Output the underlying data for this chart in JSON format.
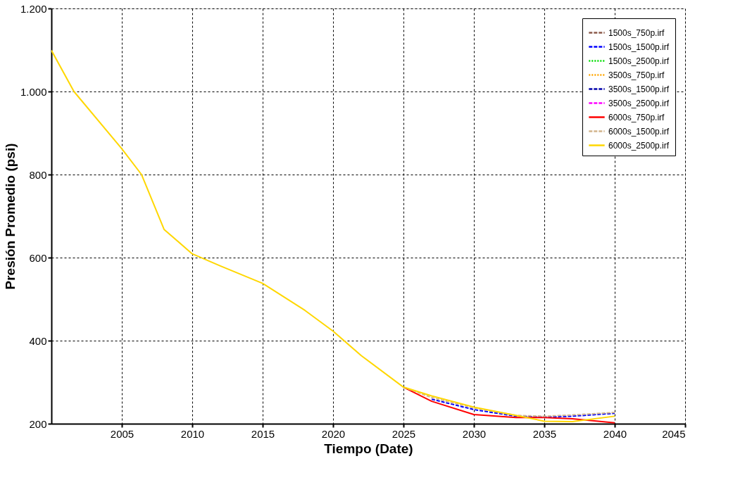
{
  "chart_data": {
    "type": "line",
    "xlabel": "Tiempo (Date)",
    "ylabel": "Presión Promedio (psi)",
    "x": [
      2000,
      2001.6,
      2005,
      2006.4,
      2008,
      2010,
      2012,
      2015,
      2018,
      2020,
      2022,
      2025,
      2027,
      2030,
      2033,
      2035,
      2037,
      2040
    ],
    "xlim": [
      2000,
      2045
    ],
    "xticks": [
      2005,
      2010,
      2015,
      2020,
      2025,
      2030,
      2035,
      2040,
      2045
    ],
    "ylim": [
      200,
      1200
    ],
    "yticks": [
      200,
      400,
      600,
      800,
      {
        "value": 1000,
        "label": "1.000"
      },
      {
        "value": 1200,
        "label": "1.200"
      }
    ],
    "grid": true,
    "legend": "top right",
    "marker": "none",
    "series": [
      {
        "name": "1500s_750p.irf",
        "color": "#8b5a4a",
        "line_style": "dashed",
        "values": [
          null,
          null,
          null,
          null,
          null,
          null,
          null,
          null,
          null,
          null,
          null,
          null,
          null,
          null,
          null,
          null,
          null,
          null
        ]
      },
      {
        "name": "1500s_1500p.irf",
        "color": "#0000ff",
        "line_style": "dashed",
        "values": [
          null,
          null,
          null,
          null,
          null,
          null,
          null,
          null,
          null,
          null,
          null,
          null,
          259,
          234,
          218,
          216,
          218,
          225
        ]
      },
      {
        "name": "1500s_2500p.irf",
        "color": "#00dd00",
        "line_style": "dotted",
        "values": [
          null,
          null,
          null,
          null,
          null,
          null,
          null,
          null,
          null,
          null,
          null,
          null,
          null,
          null,
          null,
          null,
          null,
          null
        ]
      },
      {
        "name": "3500s_750p.irf",
        "color": "#ffa500",
        "line_style": "dotted",
        "values": [
          null,
          null,
          null,
          null,
          null,
          null,
          null,
          null,
          null,
          null,
          null,
          null,
          null,
          null,
          null,
          null,
          null,
          null
        ]
      },
      {
        "name": "3500s_1500p.irf",
        "color": "#0000aa",
        "line_style": "dashed",
        "values": [
          null,
          null,
          null,
          null,
          null,
          null,
          null,
          null,
          null,
          null,
          null,
          null,
          null,
          null,
          null,
          null,
          null,
          null
        ]
      },
      {
        "name": "3500s_2500p.irf",
        "color": "#ff00ff",
        "line_style": "dashed",
        "values": [
          null,
          null,
          null,
          null,
          null,
          null,
          null,
          null,
          null,
          null,
          null,
          null,
          null,
          null,
          null,
          null,
          null,
          null
        ]
      },
      {
        "name": "6000s_750p.irf",
        "color": "#ff0000",
        "line_style": "solid",
        "values": [
          null,
          null,
          null,
          null,
          null,
          null,
          null,
          null,
          null,
          null,
          null,
          288,
          254,
          222,
          215,
          215,
          212,
          202
        ]
      },
      {
        "name": "6000s_1500p.irf",
        "color": "#d2b48c",
        "line_style": "dashed",
        "values": [
          null,
          null,
          null,
          null,
          null,
          null,
          null,
          null,
          null,
          null,
          null,
          288,
          263,
          238,
          220,
          218,
          221,
          227
        ]
      },
      {
        "name": "6000s_2500p.irf",
        "color": "#ffd700",
        "line_style": "solid",
        "values": [
          1099,
          1000,
          862,
          800,
          668,
          609,
          580,
          538,
          473,
          423,
          364,
          288,
          267,
          240,
          220,
          206,
          205,
          218
        ]
      }
    ]
  }
}
